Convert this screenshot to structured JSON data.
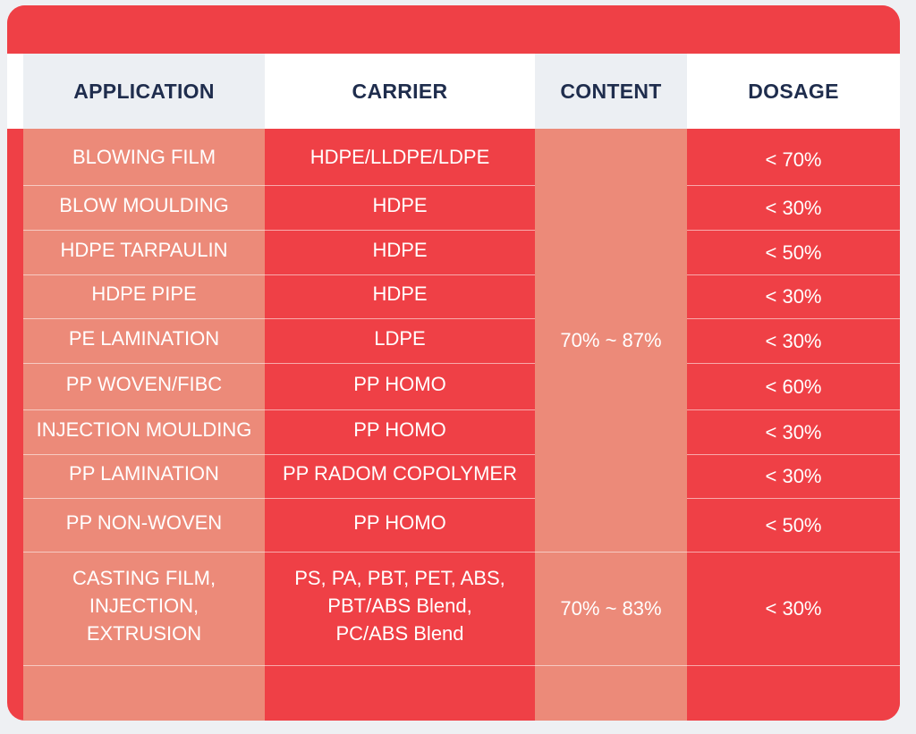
{
  "headers": {
    "application": "APPLICATION",
    "carrier": "CARRIER",
    "content": "CONTENT",
    "dosage": "DOSAGE"
  },
  "rows": [
    {
      "application": "BLOWING FILM",
      "carrier": "HDPE/LLDPE/LDPE",
      "dosage": "< 70%"
    },
    {
      "application": "BLOW MOULDING",
      "carrier": "HDPE",
      "dosage": "< 30%"
    },
    {
      "application": "HDPE TARPAULIN",
      "carrier": "HDPE",
      "dosage": "< 50%"
    },
    {
      "application": "HDPE PIPE",
      "carrier": "HDPE",
      "dosage": "< 30%"
    },
    {
      "application": "PE LAMINATION",
      "carrier": "LDPE",
      "dosage": "< 30%"
    },
    {
      "application": "PP WOVEN/FIBC",
      "carrier": "PP HOMO",
      "dosage": "< 60%"
    },
    {
      "application": "INJECTION  MOULDING",
      "carrier": "PP HOMO",
      "dosage": "< 30%"
    },
    {
      "application": "PP LAMINATION",
      "carrier": "PP RADOM COPOLYMER",
      "dosage": "< 30%"
    },
    {
      "application": "PP NON-WOVEN",
      "carrier": "PP HOMO",
      "dosage": "< 50%"
    },
    {
      "application": [
        "CASTING FILM,",
        "INJECTION,",
        "EXTRUSION"
      ],
      "carrier": [
        "PS, PA, PBT, PET, ABS,",
        "PBT/ABS Blend,",
        "PC/ABS Blend"
      ],
      "dosage": "< 30%"
    }
  ],
  "content_groups": [
    "70% ~ 87%",
    "70% ~ 83%"
  ]
}
